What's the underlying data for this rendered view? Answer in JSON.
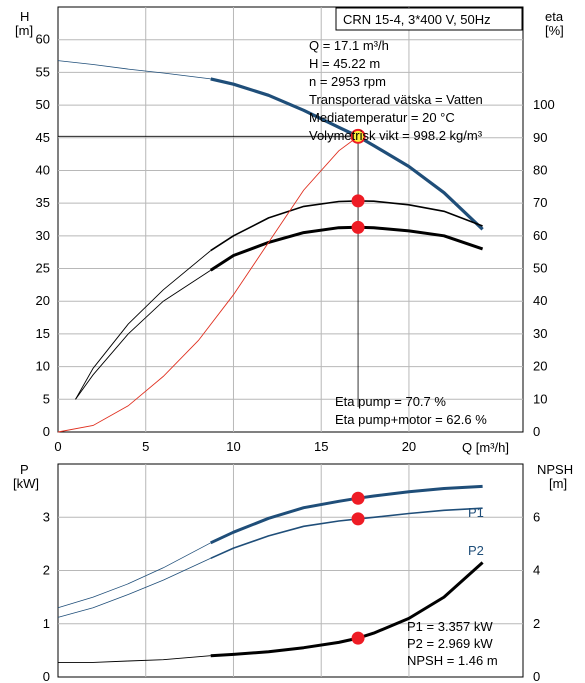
{
  "chart_data": [
    {
      "type": "line",
      "title": "CRN 15-4, 3*400 V, 50Hz",
      "xlabel": "Q [m³/h]",
      "ylabel_left": "H\n[m]",
      "ylabel_right": "eta\n[%]",
      "xlim": [
        0,
        26.5
      ],
      "ylim_left": [
        0,
        65
      ],
      "ylim_right": [
        0,
        130
      ],
      "x_ticks": [
        0,
        5,
        10,
        15,
        20
      ],
      "y_ticks_left": [
        0,
        5,
        10,
        15,
        20,
        25,
        30,
        35,
        40,
        45,
        50,
        55,
        60
      ],
      "y_ticks_right": [
        0,
        10,
        20,
        30,
        40,
        50,
        60,
        70,
        80,
        90,
        100
      ],
      "grid": true,
      "info_lines": [
        "Q = 17.1 m³/h",
        "H = 45.22 m",
        "n = 2953 rpm",
        "Transporterad vätska = Vatten",
        "Mediatemperatur = 20 °C",
        "Volymetrisk vikt = 998.2 kg/m³"
      ],
      "eta_lines": [
        "Eta pump = 70.7 %",
        "Eta pump+motor = 62.6 %"
      ],
      "series": [
        {
          "role": "head",
          "axis": "left",
          "color": "#1f4e79",
          "x": [
            0,
            2,
            4,
            6,
            8.7,
            10,
            12,
            14,
            15,
            16,
            17.1,
            18,
            20,
            22,
            24.2
          ],
          "y": [
            56.8,
            56.2,
            55.5,
            54.9,
            54.0,
            53.2,
            51.5,
            49.2,
            47.9,
            46.6,
            45.2,
            43.8,
            40.6,
            36.6,
            31.0
          ]
        },
        {
          "role": "eta-pump",
          "axis": "right",
          "color": "#000000",
          "x": [
            1,
            2,
            4,
            6,
            8.7,
            10,
            12,
            14,
            16,
            17.1,
            18,
            20,
            22,
            24.2
          ],
          "y": [
            10,
            19.5,
            33,
            43.5,
            55.5,
            60,
            65.5,
            69,
            70.5,
            70.7,
            70.6,
            69.5,
            67.5,
            63
          ]
        },
        {
          "role": "eta-pump-motor",
          "axis": "right",
          "color": "#000000",
          "x": [
            1,
            2,
            4,
            6,
            8.7,
            10,
            12,
            14,
            16,
            17.1,
            18,
            20,
            22,
            24.2
          ],
          "y": [
            10,
            17.5,
            30,
            40,
            49.5,
            54,
            58,
            61,
            62.5,
            62.6,
            62.5,
            61.5,
            60,
            56
          ]
        },
        {
          "role": "system",
          "axis": "left",
          "color": "#e03020",
          "x": [
            0,
            2,
            4,
            6,
            8,
            10,
            12,
            14,
            16,
            17.1
          ],
          "y": [
            0,
            1,
            4,
            8.5,
            14,
            21,
            29,
            37,
            43,
            45.2
          ]
        }
      ],
      "duty_point": {
        "Q": 17.1,
        "H": 45.22,
        "eta_pump": 70.7,
        "eta_pump_motor": 62.6
      }
    },
    {
      "type": "line",
      "xlim": [
        0,
        26.5
      ],
      "ylabel_left": "P\n[kW]",
      "ylabel_right": "NPSH\n[m]",
      "ylim_left": [
        0,
        4
      ],
      "ylim_right": [
        0,
        8
      ],
      "y_ticks_left": [
        0,
        1,
        2,
        3
      ],
      "y_ticks_right": [
        0,
        2,
        4,
        6
      ],
      "grid": true,
      "labels": [
        "P1 = 3.357 kW",
        "P2 = 2.969 kW",
        "NPSH = 1.46 m"
      ],
      "series": [
        {
          "name": "P1",
          "axis": "left",
          "color": "#1f4e79",
          "x": [
            0,
            2,
            4,
            6,
            8.7,
            10,
            12,
            14,
            16,
            17.1,
            18,
            20,
            22,
            24.2
          ],
          "y": [
            1.3,
            1.5,
            1.75,
            2.05,
            2.52,
            2.72,
            2.98,
            3.18,
            3.3,
            3.357,
            3.4,
            3.48,
            3.54,
            3.58
          ]
        },
        {
          "name": "P2",
          "axis": "left",
          "color": "#1f4e79",
          "x": [
            0,
            2,
            4,
            6,
            8.7,
            10,
            12,
            14,
            16,
            17.1,
            18,
            20,
            22,
            24.2
          ],
          "y": [
            1.12,
            1.3,
            1.55,
            1.82,
            2.23,
            2.42,
            2.65,
            2.83,
            2.93,
            2.969,
            3.0,
            3.07,
            3.13,
            3.17
          ]
        },
        {
          "role": "npsh",
          "axis": "right",
          "color": "#000000",
          "x": [
            0,
            2,
            4,
            6,
            8.7,
            10,
            12,
            14,
            16,
            17.1,
            18,
            20,
            22,
            24.2
          ],
          "y": [
            0.55,
            0.55,
            0.6,
            0.65,
            0.8,
            0.85,
            0.95,
            1.1,
            1.3,
            1.46,
            1.65,
            2.2,
            3.0,
            4.3
          ]
        }
      ],
      "duty_point": {
        "Q": 17.1,
        "P1": 3.357,
        "P2": 2.969,
        "NPSH": 1.46
      }
    }
  ]
}
